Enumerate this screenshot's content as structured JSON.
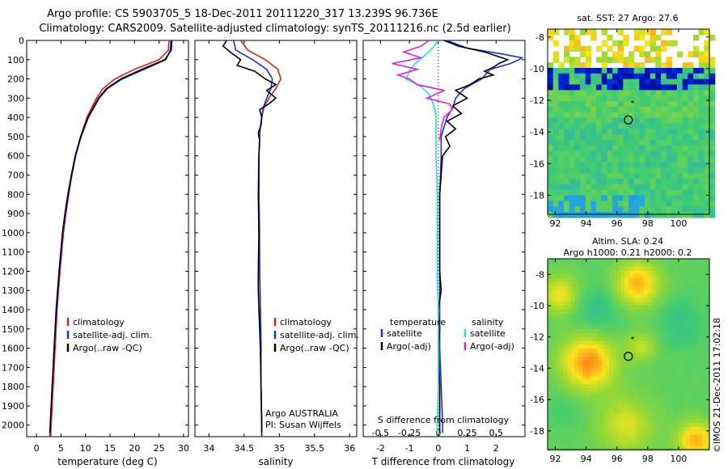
{
  "header": {
    "line1": "Argo profile: CS 5903705_5 18-Dec-2011 20111220_317 13.239S 96.736E",
    "line2": "Climatology: CARS2009. Satellite-adjusted climatology: synTS_20111216.nc (2.5d earlier)"
  },
  "stamp": "©IMOS 21-Dec-2011 17:02:18",
  "colors": {
    "climatology": "#e0201c",
    "satellite": "#1a2fd6",
    "argo": "#000000",
    "argo_s": "#e21ee0",
    "sat_s": "#22dede"
  },
  "chart_data": [
    {
      "type": "line",
      "name": "temperature",
      "xlabel": "temperature (deg C)",
      "xlim": [
        -2,
        31
      ],
      "ylim": [
        0,
        2060
      ],
      "y_reversed": true,
      "xticks": [
        0,
        5,
        10,
        15,
        20,
        25,
        30
      ],
      "yticks": [
        0,
        100,
        200,
        300,
        400,
        500,
        600,
        700,
        800,
        900,
        1000,
        1100,
        1200,
        1300,
        1400,
        1500,
        1600,
        1700,
        1800,
        1900,
        2000
      ],
      "legend": [
        "climatology",
        "satellite-adj. clim.",
        "Argo(..raw -QC)"
      ],
      "series": [
        {
          "name": "climatology",
          "color": "#e0201c",
          "depth": [
            0,
            50,
            100,
            150,
            200,
            250,
            300,
            400,
            500,
            600,
            700,
            800,
            900,
            1000,
            1200,
            1400,
            1600,
            1800,
            2000,
            2060
          ],
          "values": [
            27.0,
            26.9,
            25.0,
            20.0,
            16.0,
            13.6,
            12.2,
            10.3,
            9.0,
            8.0,
            7.2,
            6.6,
            6.0,
            5.5,
            4.8,
            4.2,
            3.8,
            3.4,
            3.0,
            2.9
          ]
        },
        {
          "name": "satellite-adj. clim.",
          "color": "#1a2fd6",
          "depth": [
            0,
            50,
            100,
            150,
            200,
            250,
            300,
            400,
            500,
            600,
            700,
            800,
            900,
            1000,
            1200,
            1400,
            1600,
            1800,
            2000,
            2060
          ],
          "values": [
            27.4,
            27.3,
            26.4,
            22.0,
            17.5,
            14.5,
            12.8,
            10.6,
            9.1,
            8.0,
            7.2,
            6.5,
            5.9,
            5.4,
            4.7,
            4.1,
            3.6,
            3.2,
            2.8,
            2.7
          ]
        },
        {
          "name": "Argo(..raw -QC)",
          "color": "#000000",
          "depth": [
            0,
            50,
            100,
            150,
            200,
            250,
            300,
            400,
            500,
            600,
            700,
            800,
            900,
            1000,
            1200,
            1400,
            1600,
            1800,
            2000,
            2040
          ],
          "values": [
            27.6,
            27.5,
            26.2,
            21.5,
            17.2,
            14.3,
            12.6,
            10.5,
            9.0,
            7.9,
            7.1,
            6.4,
            5.8,
            5.3,
            4.6,
            4.0,
            3.6,
            3.2,
            2.8,
            2.7
          ]
        }
      ]
    },
    {
      "type": "line",
      "name": "salinity",
      "xlabel": "salinity",
      "xlim": [
        33.8,
        36.1
      ],
      "ylim": [
        0,
        2060
      ],
      "y_reversed": true,
      "xticks": [
        34,
        34.5,
        35,
        35.5,
        36
      ],
      "legend": [
        "climatology",
        "satellite-adj. clim.",
        "Argo(..raw -QC)"
      ],
      "annotation": [
        "Argo AUSTRALIA",
        "PI: Susan Wijffels"
      ],
      "series": [
        {
          "name": "climatology",
          "color": "#e0201c",
          "depth": [
            0,
            50,
            100,
            150,
            200,
            250,
            300,
            350,
            400,
            450,
            500,
            600,
            800,
            1000,
            1200,
            1400,
            1600,
            1800,
            2000,
            2060
          ],
          "values": [
            34.45,
            34.55,
            34.8,
            34.98,
            35.02,
            34.95,
            34.85,
            34.78,
            34.75,
            34.73,
            34.72,
            34.71,
            34.71,
            34.72,
            34.72,
            34.73,
            34.74,
            34.74,
            34.75,
            34.75
          ]
        },
        {
          "name": "satellite-adj. clim.",
          "color": "#1a2fd6",
          "depth": [
            0,
            50,
            100,
            150,
            200,
            250,
            300,
            350,
            400,
            450,
            500,
            600,
            800,
            1000,
            1200,
            1400,
            1600,
            1800,
            2000,
            2060
          ],
          "values": [
            34.35,
            34.38,
            34.62,
            34.82,
            34.9,
            34.88,
            34.82,
            34.77,
            34.75,
            34.73,
            34.72,
            34.71,
            34.71,
            34.71,
            34.72,
            34.73,
            34.74,
            34.74,
            34.75,
            34.75
          ]
        },
        {
          "name": "Argo(..raw -QC)",
          "color": "#000000",
          "depth": [
            0,
            30,
            60,
            100,
            130,
            160,
            200,
            230,
            260,
            300,
            330,
            360,
            400,
            440,
            480,
            520,
            600,
            800,
            1000,
            1200,
            1300,
            1400,
            1600,
            1800,
            2000,
            2040
          ],
          "values": [
            34.25,
            34.2,
            34.3,
            34.45,
            34.4,
            34.65,
            34.8,
            34.95,
            34.82,
            34.95,
            34.85,
            34.72,
            34.75,
            34.74,
            34.7,
            34.72,
            34.71,
            34.7,
            34.71,
            34.7,
            34.7,
            34.71,
            34.73,
            34.74,
            34.75,
            34.75
          ]
        }
      ]
    },
    {
      "type": "line",
      "name": "difference",
      "xlabel": "T difference from climatology",
      "xlabel2": "S difference from climatology",
      "xlim": [
        -2.6,
        3.0
      ],
      "ylim": [
        0,
        2060
      ],
      "y_reversed": true,
      "xticks": [
        -2,
        -1,
        0,
        1,
        2
      ],
      "xticklabels_T": [
        "-2",
        "-1",
        "0",
        "1",
        "2"
      ],
      "xticks_S": [
        -0.5,
        -0.25,
        0,
        0.25,
        0.5
      ],
      "xticklabels_S": [
        "-0.5",
        "-0.25",
        "0",
        "0.25",
        "0.5"
      ],
      "s_scale": 4,
      "legend_temperature_title": "temperature",
      "legend_salinity_title": "salinity",
      "legend_temperature": [
        "satellite",
        "Argo(-adj)"
      ],
      "legend_salinity": [
        "satellite",
        "Argo(-adj)"
      ],
      "series": [
        {
          "name": "T satellite",
          "color": "#1a2fd6",
          "depth": [
            0,
            40,
            70,
            90,
            100,
            120,
            150,
            200,
            250,
            300,
            350,
            400,
            500,
            600,
            800,
            1000,
            1200,
            1400,
            1600,
            1800,
            2000,
            2040
          ],
          "values": [
            0.3,
            1.0,
            2.2,
            2.9,
            2.8,
            2.5,
            1.8,
            1.5,
            0.9,
            0.6,
            0.5,
            0.3,
            0.1,
            0.1,
            0.05,
            0.05,
            0.05,
            0.05,
            0.05,
            0.1,
            0.15,
            0.15
          ]
        },
        {
          "name": "T Argo(-adj)",
          "color": "#000000",
          "depth": [
            0,
            30,
            60,
            80,
            100,
            120,
            140,
            160,
            180,
            200,
            230,
            260,
            300,
            340,
            380,
            420,
            460,
            500,
            550,
            600,
            700,
            800,
            1000,
            1200,
            1300,
            1400,
            1500,
            1600,
            1800,
            2000,
            2040
          ],
          "values": [
            0.2,
            0.7,
            1.6,
            2.0,
            2.4,
            2.1,
            1.9,
            1.6,
            1.9,
            1.4,
            1.1,
            0.6,
            1.0,
            0.5,
            0.8,
            0.3,
            0.6,
            0.25,
            0.4,
            0.15,
            0.1,
            0.05,
            0.05,
            0.05,
            0.1,
            0.0,
            0.05,
            0.0,
            0.05,
            0.05,
            0.05
          ]
        },
        {
          "name": "S satellite",
          "color": "#22dede",
          "depth": [
            0,
            40,
            80,
            120,
            160,
            200,
            240,
            280,
            320,
            360,
            400,
            500,
            600,
            800,
            1000,
            1200,
            1400,
            1600,
            1800,
            2000,
            2040
          ],
          "values": [
            0.0,
            -0.05,
            -0.12,
            -0.2,
            -0.25,
            -0.28,
            -0.15,
            -0.08,
            -0.05,
            -0.03,
            -0.02,
            -0.02,
            -0.02,
            -0.01,
            -0.01,
            -0.01,
            0.0,
            0.0,
            0.0,
            -0.01,
            -0.01
          ]
        },
        {
          "name": "S Argo(-adj)",
          "color": "#e21ee0",
          "depth": [
            0,
            30,
            60,
            90,
            120,
            150,
            180,
            200,
            230,
            260,
            300,
            330,
            360,
            400,
            440,
            480,
            520
          ],
          "values": [
            -0.08,
            -0.15,
            -0.3,
            -0.15,
            -0.4,
            -0.18,
            -0.35,
            -0.25,
            -0.18,
            0.05,
            -0.1,
            0.1,
            0.12,
            0.05,
            0.03,
            0.02,
            0.01
          ]
        }
      ]
    },
    {
      "type": "heatmap",
      "name": "sst-map",
      "title": "sat. SST: 27 Argo: 27.6",
      "xlim": [
        91.5,
        102
      ],
      "ylim": [
        -19.2,
        -7.5
      ],
      "xticks": [
        92,
        94,
        96,
        98,
        100
      ],
      "yticks": [
        -8,
        -10,
        -12,
        -14,
        -16,
        -18
      ],
      "marker": {
        "lon": 96.736,
        "lat": -13.239
      }
    },
    {
      "type": "heatmap",
      "name": "sla-map",
      "title": "Altim. SLA: 0.24",
      "subtitle": "Argo h1000: 0.21 h2000: 0.2",
      "xlim": [
        91.5,
        102
      ],
      "ylim": [
        -19.2,
        -7.0
      ],
      "xticks": [
        92,
        94,
        96,
        98,
        100
      ],
      "yticks": [
        -8,
        -10,
        -12,
        -14,
        -16,
        -18
      ],
      "marker": {
        "lon": 96.736,
        "lat": -13.239
      }
    }
  ]
}
